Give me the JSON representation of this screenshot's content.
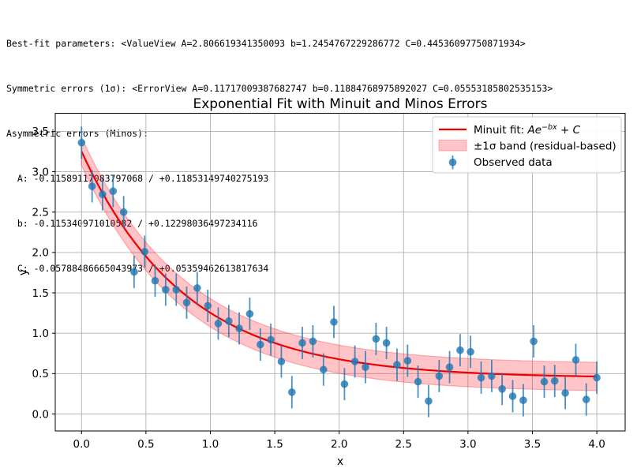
{
  "header": {
    "lines": [
      "Best-fit parameters: <ValueView A=2.806619341350093 b=1.2454767229286772 C=0.44536097750871934>",
      "Symmetric errors (1σ): <ErrorView A=0.11717009387682747 b=0.11884768975892027 C=0.05553185802535153>",
      "Asymmetric errors (Minos):",
      "  A: -0.11589117083797068 / +0.11853149740275193",
      "  b: -0.115340971010582 / +0.12298036497234116",
      "  C: -0.05788486665043973 / +0.05359462613817634"
    ]
  },
  "chart_data": {
    "type": "scatter",
    "title": "Exponential Fit with Minuit and Minos Errors",
    "xlabel": "x",
    "ylabel": "y",
    "grid": true,
    "legend_position": "upper right",
    "xlim": [
      -0.204,
      4.22
    ],
    "ylim": [
      -0.21,
      3.724
    ],
    "xticks": {
      "values": [
        0,
        0.5,
        1,
        1.5,
        2,
        2.5,
        3,
        3.5,
        4
      ],
      "labels": [
        "0.0",
        "0.5",
        "1.0",
        "1.5",
        "2.0",
        "2.5",
        "3.0",
        "3.5",
        "4.0"
      ]
    },
    "yticks": {
      "values": [
        0,
        0.5,
        1,
        1.5,
        2,
        2.5,
        3,
        3.5
      ],
      "labels": [
        "0.0",
        "0.5",
        "1.0",
        "1.5",
        "2.0",
        "2.5",
        "3.0",
        "3.5"
      ]
    },
    "fit_curve": {
      "model": "A*exp(-b*x) + C",
      "A": 2.806619341350093,
      "b": 1.2454767229286772,
      "C": 0.44536097750871934,
      "sigma_band": 0.175,
      "x_range": [
        0,
        4
      ]
    },
    "series": [
      {
        "name": "Observed data",
        "x": [
          0.0,
          0.082,
          0.163,
          0.245,
          0.327,
          0.408,
          0.49,
          0.571,
          0.653,
          0.735,
          0.816,
          0.898,
          0.98,
          1.061,
          1.143,
          1.224,
          1.306,
          1.388,
          1.469,
          1.551,
          1.633,
          1.714,
          1.796,
          1.878,
          1.959,
          2.041,
          2.122,
          2.204,
          2.286,
          2.367,
          2.449,
          2.531,
          2.612,
          2.694,
          2.776,
          2.857,
          2.939,
          3.02,
          3.102,
          3.184,
          3.265,
          3.347,
          3.429,
          3.51,
          3.592,
          3.673,
          3.755,
          3.837,
          3.918,
          4.0
        ],
        "y": [
          3.36,
          2.82,
          2.72,
          2.76,
          2.5,
          1.76,
          2.01,
          1.65,
          1.54,
          1.54,
          1.38,
          1.56,
          1.34,
          1.12,
          1.15,
          1.06,
          1.24,
          0.86,
          0.92,
          0.65,
          0.27,
          0.88,
          0.9,
          0.55,
          1.14,
          0.37,
          0.65,
          0.58,
          0.93,
          0.88,
          0.61,
          0.66,
          0.4,
          0.16,
          0.47,
          0.58,
          0.79,
          0.77,
          0.45,
          0.47,
          0.31,
          0.22,
          0.17,
          0.9,
          0.4,
          0.41,
          0.26,
          0.67,
          0.18,
          0.45
        ],
        "yerr": 0.2
      }
    ],
    "legend": {
      "items": [
        {
          "swatch": "line",
          "label": "Minuit fit: Ae⁻ᵇˣ + C",
          "runs": [
            {
              "t": "Minuit fit: "
            },
            {
              "t": "Ae",
              "italic": true
            },
            {
              "t": "−bx",
              "italic": true,
              "sup": true
            },
            {
              "t": " + ",
              "italic": false
            },
            {
              "t": "C",
              "italic": true
            }
          ]
        },
        {
          "swatch": "band",
          "label": "±1σ band (residual-based)"
        },
        {
          "swatch": "marker",
          "label": "Observed data"
        }
      ]
    },
    "colors": {
      "fit_line": "#ef0000",
      "band_fill": "rgba(255,20,30,0.25)",
      "band_edge": "rgba(255,20,30,0.3)",
      "points": "#1f77b4",
      "points_alpha": 0.8,
      "grid": "#b0b0b0",
      "spine": "#000000",
      "legend_border": "#cccccc"
    }
  }
}
